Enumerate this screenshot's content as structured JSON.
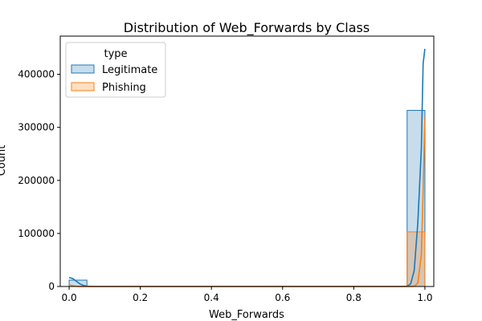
{
  "chart_data": {
    "type": "bar",
    "title": "Distribution of Web_Forwards by Class",
    "xlabel": "Web_Forwards",
    "ylabel": "Count",
    "xlim": [
      -0.025,
      1.025
    ],
    "ylim": [
      0,
      472000
    ],
    "x_ticks": [
      0.0,
      0.2,
      0.4,
      0.6,
      0.8,
      1.0
    ],
    "x_tick_labels": [
      "0.0",
      "0.2",
      "0.4",
      "0.6",
      "0.8",
      "1.0"
    ],
    "y_ticks": [
      0,
      100000,
      200000,
      300000,
      400000
    ],
    "y_tick_labels": [
      "0",
      "100000",
      "200000",
      "300000",
      "400000"
    ],
    "grid": false,
    "legend": {
      "title": "type",
      "placement": "top-left"
    },
    "bins": {
      "start": 0.0,
      "width": 0.05,
      "count": 20
    },
    "series": [
      {
        "name": "Legitimate",
        "color": "#1f77b4",
        "bin_counts": [
          12000,
          0,
          0,
          0,
          0,
          0,
          0,
          0,
          0,
          0,
          0,
          0,
          0,
          0,
          0,
          0,
          0,
          0,
          0,
          332000
        ],
        "kde": [
          [
            0.0,
            17000
          ],
          [
            0.01,
            15000
          ],
          [
            0.02,
            10000
          ],
          [
            0.03,
            5000
          ],
          [
            0.04,
            2000
          ],
          [
            0.05,
            500
          ],
          [
            0.07,
            0
          ],
          [
            0.93,
            0
          ],
          [
            0.95,
            500
          ],
          [
            0.96,
            5000
          ],
          [
            0.97,
            30000
          ],
          [
            0.98,
            120000
          ],
          [
            0.99,
            260000
          ],
          [
            0.995,
            420000
          ],
          [
            1.0,
            448000
          ]
        ]
      },
      {
        "name": "Phishing",
        "color": "#ff7f0e",
        "bin_counts": [
          0,
          0,
          0,
          0,
          0,
          0,
          0,
          0,
          0,
          0,
          0,
          0,
          0,
          0,
          0,
          0,
          0,
          0,
          0,
          103000
        ],
        "kde": [
          [
            0.0,
            3000
          ],
          [
            0.01,
            1500
          ],
          [
            0.02,
            500
          ],
          [
            0.03,
            0
          ],
          [
            0.96,
            0
          ],
          [
            0.97,
            500
          ],
          [
            0.98,
            6000
          ],
          [
            0.99,
            60000
          ],
          [
            0.995,
            180000
          ],
          [
            1.0,
            318000
          ]
        ]
      }
    ]
  }
}
